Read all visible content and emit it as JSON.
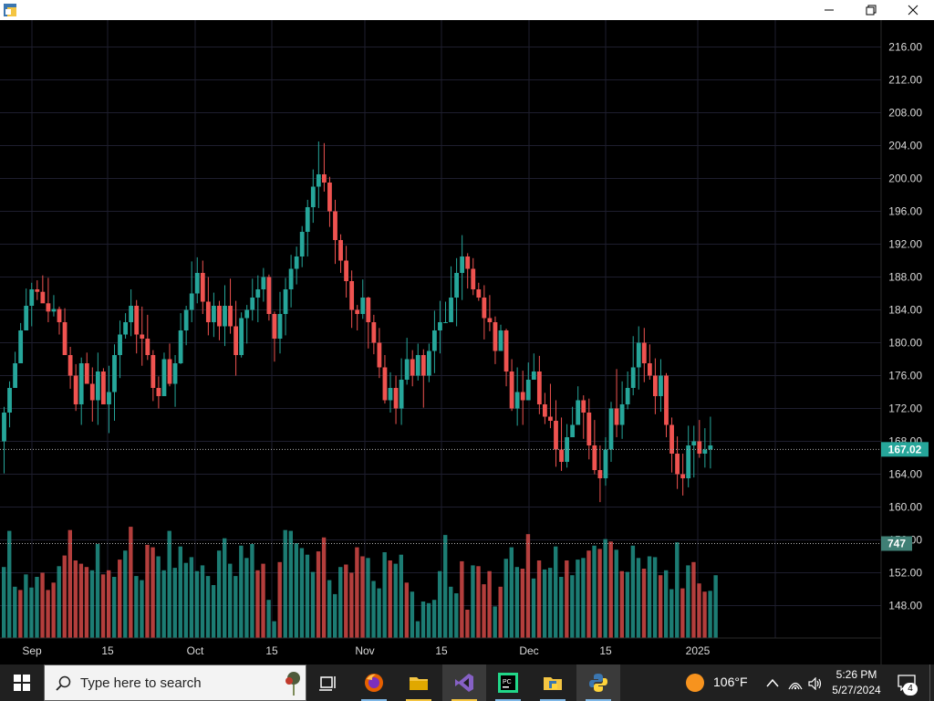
{
  "window": {
    "controls": [
      "minimize-icon",
      "restore-icon",
      "close-icon"
    ]
  },
  "colors": {
    "up": "#26a69a",
    "down": "#ef5350",
    "grid": "#1e1e2e",
    "axis_text": "#d9d9d9"
  },
  "chart_data": {
    "type": "candlestick",
    "price_axis": {
      "ticks": [
        "216.00",
        "212.00",
        "208.00",
        "204.00",
        "200.00",
        "196.00",
        "192.00",
        "188.00",
        "184.00",
        "180.00",
        "176.00",
        "172.00",
        "168.00",
        "164.00",
        "160.00",
        "156.00",
        "152.00",
        "148.00"
      ],
      "range": [
        146,
        218
      ]
    },
    "time_axis": {
      "labels": [
        "Sep",
        "15",
        "Oct",
        "15",
        "Nov",
        "15",
        "Dec",
        "15",
        "2025"
      ]
    },
    "last_price": "167.02",
    "last_volume": "747",
    "candles": [
      [
        168,
        171.5,
        166.3,
        172.2,
        164.1
      ],
      [
        171.5,
        174.5,
        167.9,
        175.3,
        169.7
      ],
      [
        174.5,
        177.5,
        172.8,
        178.9,
        175.9
      ],
      [
        177.5,
        181.5,
        176.7,
        182.4,
        180.6
      ],
      [
        181.5,
        184.5,
        179.4,
        186.6,
        183.9
      ],
      [
        184.5,
        186.5,
        184.2,
        187.3,
        182.0
      ],
      [
        186.5,
        186.2,
        184.3,
        187.6,
        185.2
      ],
      [
        186.2,
        184.8,
        182.7,
        188.2,
        186.1
      ],
      [
        184.8,
        183.8,
        181.4,
        187.9,
        182.5
      ],
      [
        183.8,
        184.1,
        181.9,
        185.8,
        183.2
      ],
      [
        184.1,
        182.5,
        182.2,
        184.4,
        181.0
      ],
      [
        182.5,
        178.5,
        178.1,
        184.2,
        180.7
      ],
      [
        178.5,
        176.0,
        175.3,
        179.5,
        174.4
      ],
      [
        176.0,
        172.5,
        170.3,
        177.4,
        171.7
      ],
      [
        172.5,
        177.5,
        173.9,
        178.2,
        170.0
      ],
      [
        177.5,
        175.0,
        171.9,
        178.8,
        176.6
      ],
      [
        175.0,
        173.0,
        172.6,
        177.0,
        170.4
      ],
      [
        173.0,
        176.5,
        173.0,
        178.8,
        170.0
      ],
      [
        176.5,
        172.5,
        168.7,
        176.9,
        172.6
      ],
      [
        172.5,
        174.0,
        174.4,
        177.2,
        169.0
      ],
      [
        174.0,
        178.5,
        175.4,
        179.8,
        170.5
      ],
      [
        178.5,
        181.0,
        181.8,
        182.7,
        175.7
      ],
      [
        181.0,
        182.5,
        184.5,
        183.6,
        180.5
      ],
      [
        182.5,
        184.5,
        181.7,
        186.5,
        180.8
      ],
      [
        184.5,
        181.0,
        182.2,
        185.2,
        178.7
      ],
      [
        181.0,
        180.5,
        181.6,
        184.4,
        177.2
      ],
      [
        180.5,
        178.5,
        174.0,
        183.4,
        177.9
      ],
      [
        178.5,
        174.5,
        174.8,
        179.1,
        172.9
      ],
      [
        174.5,
        173.5,
        174.8,
        175.9,
        172.0
      ],
      [
        173.5,
        178.0,
        179.6,
        178.8,
        173.5
      ],
      [
        178.0,
        175.0,
        176.2,
        179.9,
        174.7
      ],
      [
        175.0,
        177.5,
        178.3,
        178.5,
        172.2
      ],
      [
        177.5,
        181.5,
        182.0,
        183.6,
        177.4
      ],
      [
        181.5,
        184.0,
        180.4,
        184.5,
        179.7
      ],
      [
        184.0,
        186.0,
        184.7,
        189.9,
        182.5
      ],
      [
        186.0,
        188.5,
        188.9,
        190.4,
        184.8
      ],
      [
        188.5,
        185.0,
        184.9,
        190.0,
        183.5
      ],
      [
        185.0,
        182.5,
        181.4,
        188.0,
        180.9
      ],
      [
        182.5,
        184.5,
        182.8,
        186.1,
        180.7
      ],
      [
        184.5,
        182.0,
        182.3,
        185.1,
        180.3
      ],
      [
        182.0,
        184.5,
        182.8,
        187.0,
        179.6
      ],
      [
        184.5,
        182.0,
        185.1,
        187.8,
        181.1
      ],
      [
        182.0,
        178.5,
        178.4,
        185.1,
        176.0
      ],
      [
        178.5,
        183.0,
        182.9,
        183.7,
        178.2
      ],
      [
        183.0,
        184.0,
        180.5,
        184.6,
        179.9
      ],
      [
        184.0,
        185.5,
        184.1,
        187.8,
        182.7
      ],
      [
        185.5,
        186.5,
        187.6,
        188.2,
        182.5
      ],
      [
        186.5,
        188.0,
        183.6,
        189.1,
        185.0
      ],
      [
        188.0,
        183.5,
        183.6,
        188.3,
        182.7
      ],
      [
        183.5,
        180.5,
        181.2,
        183.8,
        177.7
      ],
      [
        180.5,
        183.5,
        184.2,
        186.2,
        178.7
      ],
      [
        183.5,
        186.5,
        182.9,
        187.9,
        180.9
      ],
      [
        186.5,
        189.0,
        190.4,
        190.7,
        184.3
      ],
      [
        189.0,
        190.5,
        186.4,
        191.7,
        187.1
      ],
      [
        190.5,
        193.5,
        190.0,
        194.2,
        189.2
      ],
      [
        193.5,
        196.5,
        197.8,
        197.4,
        190.5
      ],
      [
        196.5,
        199.0,
        200.3,
        201.1,
        194.6
      ],
      [
        199.0,
        200.5,
        201.3,
        204.5,
        196.4
      ],
      [
        200.5,
        199.5,
        199.8,
        204.3,
        198.4
      ],
      [
        199.5,
        196.0,
        195.6,
        200.2,
        194.1
      ],
      [
        196.0,
        192.5,
        192.7,
        197.4,
        189.6
      ],
      [
        192.5,
        190.0,
        190.9,
        193.2,
        188.5
      ],
      [
        190.0,
        187.5,
        187.9,
        191.8,
        185.5
      ],
      [
        187.5,
        184.0,
        182.4,
        188.8,
        181.8
      ],
      [
        184.0,
        183.5,
        181.8,
        184.6,
        181.5
      ],
      [
        183.5,
        185.5,
        184.8,
        187.7,
        182.9
      ],
      [
        185.5,
        182.5,
        181.6,
        185.6,
        179.3
      ],
      [
        182.5,
        180.0,
        177.7,
        183.4,
        178.6
      ],
      [
        180.0,
        177.0,
        174.5,
        181.8,
        175.7
      ],
      [
        177.0,
        173.0,
        171.6,
        178.5,
        172.6
      ],
      [
        173.0,
        174.5,
        173.8,
        176.4,
        171.5
      ],
      [
        174.5,
        172.0,
        170.6,
        176.0,
        170.1
      ],
      [
        172.0,
        175.5,
        176.4,
        178.1,
        170.0
      ],
      [
        175.5,
        178.0,
        177.3,
        180.6,
        174.9
      ],
      [
        178.0,
        176.0,
        176.7,
        179.1,
        174.7
      ],
      [
        176.0,
        178.5,
        179.1,
        179.9,
        175.4
      ],
      [
        178.5,
        176.0,
        174.3,
        179.2,
        172.1
      ],
      [
        176.0,
        179.0,
        176.8,
        179.9,
        175.2
      ],
      [
        179.0,
        181.5,
        180.5,
        183.9,
        176.3
      ],
      [
        181.5,
        182.5,
        180.9,
        185.1,
        178.7
      ],
      [
        182.5,
        182.5,
        180.9,
        185.0,
        182.4
      ],
      [
        182.5,
        185.5,
        184.1,
        189.3,
        183.7
      ],
      [
        185.5,
        188.5,
        185.8,
        190.3,
        182.0
      ],
      [
        188.5,
        190.5,
        192.0,
        193.1,
        185.2
      ],
      [
        190.5,
        189.0,
        191.8,
        190.9,
        186.6
      ],
      [
        189.0,
        186.5,
        188.6,
        190.3,
        185.8
      ],
      [
        186.5,
        185.5,
        185.0,
        187.3,
        185.1
      ],
      [
        185.5,
        183.0,
        181.2,
        187.0,
        180.4
      ],
      [
        183.0,
        182.5,
        182.3,
        185.8,
        181.4
      ],
      [
        182.5,
        179.0,
        179.4,
        183.2,
        177.4
      ],
      [
        179.0,
        181.5,
        180.2,
        182.2,
        179.8
      ],
      [
        181.5,
        176.5,
        176.3,
        181.7,
        174.7
      ],
      [
        176.5,
        172.0,
        170.6,
        178.0,
        171.7
      ],
      [
        172.0,
        174.0,
        174.4,
        177.0,
        169.9
      ],
      [
        174.0,
        173.0,
        174.8,
        176.6,
        170.0
      ],
      [
        173.0,
        175.5,
        177.4,
        177.6,
        173.1
      ],
      [
        175.5,
        176.5,
        179.2,
        178.7,
        175.8
      ],
      [
        176.5,
        172.5,
        174.2,
        178.4,
        171.3
      ],
      [
        172.5,
        171.0,
        171.2,
        173.9,
        170.1
      ],
      [
        171.0,
        170.5,
        171.0,
        175.0,
        169.6
      ],
      [
        170.5,
        167.0,
        166.9,
        173.0,
        164.9
      ],
      [
        167.0,
        165.5,
        166.3,
        170.9,
        164.4
      ],
      [
        165.5,
        168.5,
        169.1,
        170.1,
        164.8
      ],
      [
        168.5,
        170.0,
        169.2,
        172.2,
        168.6
      ],
      [
        170.0,
        173.0,
        174.0,
        174.7,
        170.1
      ],
      [
        173.0,
        171.5,
        170.5,
        173.6,
        168.3
      ],
      [
        171.5,
        167.5,
        166.9,
        173.2,
        165.8
      ],
      [
        167.5,
        164.5,
        165.4,
        170.6,
        164.0
      ],
      [
        164.5,
        163.5,
        162.4,
        167.5,
        160.6
      ],
      [
        163.5,
        167.0,
        166.2,
        168.5,
        162.6
      ],
      [
        167.0,
        172.0,
        173.4,
        172.8,
        165.5
      ],
      [
        172.0,
        170.0,
        170.8,
        176.8,
        168.5
      ],
      [
        170.0,
        172.5,
        170.4,
        175.3,
        168.3
      ],
      [
        172.5,
        174.5,
        175.6,
        176.5,
        171.9
      ],
      [
        174.5,
        177.0,
        177.4,
        180.8,
        173.6
      ],
      [
        177.0,
        180.0,
        178.1,
        182.0,
        174.3
      ],
      [
        180.0,
        177.5,
        176.7,
        181.8,
        175.2
      ],
      [
        177.5,
        176.0,
        175.3,
        179.8,
        175.5
      ],
      [
        176.0,
        173.5,
        174.1,
        178.1,
        171.3
      ],
      [
        173.5,
        176.0,
        176.0,
        178.0,
        171.6
      ],
      [
        176.0,
        170.0,
        170.0,
        176.3,
        168.5
      ],
      [
        170.0,
        166.5,
        165.2,
        170.9,
        164.2
      ],
      [
        166.5,
        164.0,
        164.1,
        168.6,
        162.2
      ],
      [
        164.0,
        163.5,
        163.2,
        166.5,
        161.4
      ],
      [
        163.5,
        167.5,
        166.1,
        169.9,
        162.4
      ],
      [
        167.5,
        168.0,
        169.9,
        169.9,
        163.6
      ],
      [
        168.0,
        166.5,
        167.5,
        170.6,
        166.0
      ],
      [
        166.5,
        167.0,
        166.1,
        169.6,
        164.8
      ],
      [
        167.0,
        167.5,
        168.1,
        171.0,
        164.7
      ]
    ],
    "volumes": [
      [
        152.7,
        "up"
      ],
      [
        157.1,
        "up"
      ],
      [
        150.3,
        "up"
      ],
      [
        149.9,
        "down"
      ],
      [
        151.8,
        "up"
      ],
      [
        150.2,
        "up"
      ],
      [
        151.5,
        "up"
      ],
      [
        152.0,
        "down"
      ],
      [
        149.9,
        "down"
      ],
      [
        150.8,
        "down"
      ],
      [
        152.8,
        "up"
      ],
      [
        154.1,
        "down"
      ],
      [
        157.2,
        "down"
      ],
      [
        153.5,
        "down"
      ],
      [
        153.1,
        "down"
      ],
      [
        152.7,
        "down"
      ],
      [
        152.3,
        "up"
      ],
      [
        155.5,
        "up"
      ],
      [
        151.8,
        "down"
      ],
      [
        152.3,
        "down"
      ],
      [
        151.5,
        "up"
      ],
      [
        153.6,
        "down"
      ],
      [
        154.7,
        "up"
      ],
      [
        157.6,
        "down"
      ],
      [
        151.6,
        "up"
      ],
      [
        151.1,
        "up"
      ],
      [
        155.4,
        "down"
      ],
      [
        155.1,
        "down"
      ],
      [
        154.0,
        "up"
      ],
      [
        152.3,
        "up"
      ],
      [
        157.1,
        "up"
      ],
      [
        152.6,
        "up"
      ],
      [
        155.2,
        "up"
      ],
      [
        153.2,
        "up"
      ],
      [
        153.9,
        "up"
      ],
      [
        152.2,
        "up"
      ],
      [
        152.9,
        "up"
      ],
      [
        151.6,
        "up"
      ],
      [
        150.5,
        "up"
      ],
      [
        154.7,
        "up"
      ],
      [
        156.2,
        "up"
      ],
      [
        153.1,
        "up"
      ],
      [
        151.6,
        "up"
      ],
      [
        155.3,
        "up"
      ],
      [
        153.8,
        "up"
      ],
      [
        155.5,
        "up"
      ],
      [
        152.3,
        "down"
      ],
      [
        153.1,
        "down"
      ],
      [
        148.7,
        "up"
      ],
      [
        146.1,
        "up"
      ],
      [
        153.3,
        "down"
      ],
      [
        157.2,
        "up"
      ],
      [
        157.1,
        "up"
      ],
      [
        155.6,
        "up"
      ],
      [
        155.0,
        "up"
      ],
      [
        154.2,
        "up"
      ],
      [
        152.1,
        "up"
      ],
      [
        154.6,
        "down"
      ],
      [
        156.3,
        "down"
      ],
      [
        151.1,
        "up"
      ],
      [
        149.4,
        "up"
      ],
      [
        152.7,
        "up"
      ],
      [
        153.0,
        "down"
      ],
      [
        152.0,
        "down"
      ],
      [
        155.1,
        "down"
      ],
      [
        154.0,
        "down"
      ],
      [
        153.8,
        "up"
      ],
      [
        151.0,
        "up"
      ],
      [
        150.1,
        "up"
      ],
      [
        154.5,
        "up"
      ],
      [
        153.5,
        "down"
      ],
      [
        153.1,
        "up"
      ],
      [
        154.2,
        "up"
      ],
      [
        150.8,
        "down"
      ],
      [
        149.7,
        "up"
      ],
      [
        146.1,
        "up"
      ],
      [
        148.5,
        "up"
      ],
      [
        148.3,
        "up"
      ],
      [
        148.7,
        "up"
      ],
      [
        152.2,
        "up"
      ],
      [
        156.6,
        "up"
      ],
      [
        150.3,
        "up"
      ],
      [
        149.5,
        "up"
      ],
      [
        153.4,
        "down"
      ],
      [
        147.5,
        "down"
      ],
      [
        152.9,
        "up"
      ],
      [
        152.8,
        "down"
      ],
      [
        150.6,
        "down"
      ],
      [
        152.2,
        "down"
      ],
      [
        147.9,
        "up"
      ],
      [
        150.3,
        "down"
      ],
      [
        153.7,
        "up"
      ],
      [
        155.1,
        "up"
      ],
      [
        152.7,
        "up"
      ],
      [
        152.5,
        "down"
      ],
      [
        156.7,
        "down"
      ],
      [
        151.3,
        "up"
      ],
      [
        153.5,
        "down"
      ],
      [
        152.4,
        "up"
      ],
      [
        152.6,
        "up"
      ],
      [
        155.2,
        "up"
      ],
      [
        151.5,
        "up"
      ],
      [
        153.5,
        "down"
      ],
      [
        151.7,
        "up"
      ],
      [
        153.6,
        "up"
      ],
      [
        153.8,
        "up"
      ],
      [
        154.7,
        "down"
      ],
      [
        155.3,
        "up"
      ],
      [
        154.9,
        "down"
      ],
      [
        156.1,
        "up"
      ],
      [
        155.8,
        "down"
      ],
      [
        154.8,
        "up"
      ],
      [
        152.2,
        "down"
      ],
      [
        152.1,
        "up"
      ],
      [
        155.3,
        "up"
      ],
      [
        153.8,
        "up"
      ],
      [
        152.5,
        "down"
      ],
      [
        154.0,
        "up"
      ],
      [
        153.9,
        "up"
      ],
      [
        151.7,
        "down"
      ],
      [
        152.3,
        "up"
      ],
      [
        150.0,
        "up"
      ],
      [
        155.7,
        "up"
      ],
      [
        150.1,
        "down"
      ],
      [
        152.9,
        "up"
      ],
      [
        153.3,
        "down"
      ],
      [
        150.7,
        "down"
      ],
      [
        149.7,
        "down"
      ],
      [
        149.8,
        "up"
      ],
      [
        151.7,
        "up"
      ]
    ]
  },
  "taskbar": {
    "search_placeholder": "Type here to search",
    "weather": {
      "temp": "106°F"
    },
    "clock": {
      "time": "5:26 PM",
      "date": "5/27/2024"
    },
    "notification_count": "4",
    "apps": [
      {
        "name": "task-view",
        "icon": "task-view-icon",
        "active": false
      },
      {
        "name": "firefox",
        "icon": "firefox-icon",
        "active": false
      },
      {
        "name": "file-explorer",
        "icon": "folder-icon",
        "active": false
      },
      {
        "name": "visual-studio",
        "icon": "visual-studio-icon",
        "active": true
      },
      {
        "name": "pycharm",
        "icon": "pycharm-icon",
        "active": false
      },
      {
        "name": "python-folder",
        "icon": "python-folder-icon",
        "active": false
      },
      {
        "name": "python",
        "icon": "python-icon",
        "active": true
      }
    ]
  }
}
